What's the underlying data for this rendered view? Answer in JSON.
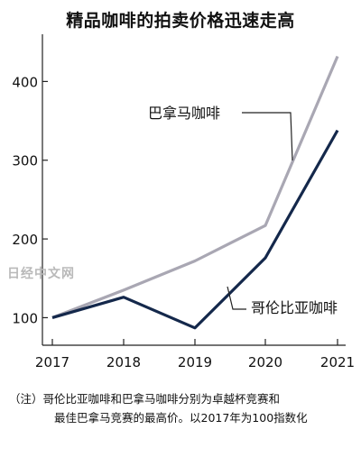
{
  "title": "精品咖啡的拍卖价格迅速走高",
  "note": {
    "line1": "（注）哥伦比亚咖啡和巴拿马咖啡分别为卓越杯竞赛和",
    "line2": "最佳巴拿马竞赛的最高价。以2017年为100指数化"
  },
  "watermark": "日经中文网",
  "chart_data": {
    "type": "line",
    "x": [
      2017,
      2018,
      2019,
      2020,
      2021
    ],
    "xticks": [
      "2017",
      "2018",
      "2019",
      "2020",
      "2021"
    ],
    "yticks": [
      "100",
      "200",
      "300",
      "400"
    ],
    "ylim": [
      65,
      460
    ],
    "grid": false,
    "series": [
      {
        "name": "巴拿马咖啡",
        "color": "#a9a7b3",
        "values": [
          100,
          135,
          172,
          217,
          432
        ]
      },
      {
        "name": "哥伦比亚咖啡",
        "color": "#14284b",
        "values": [
          100,
          126,
          87,
          176,
          338
        ]
      }
    ]
  }
}
